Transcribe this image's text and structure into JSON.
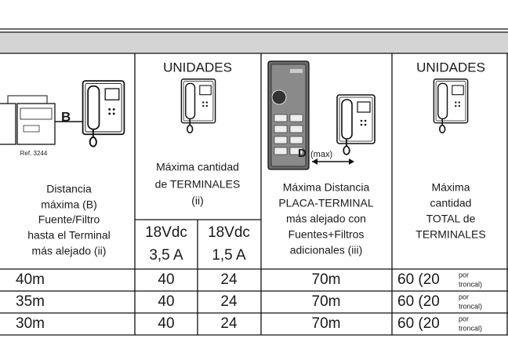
{
  "header": {
    "col1": {
      "diagram_labels": [
        "B",
        "Ref. 3244"
      ],
      "text": [
        "Distancia",
        "máxima (B)",
        "Fuente/Filtro",
        "hasta el Terminal",
        "más alejado (ii)"
      ]
    },
    "col2": {
      "title": "UNIDADES",
      "text": [
        "Máxima cantidad",
        "de TERMINALES",
        "(ii)"
      ],
      "sub": [
        [
          "18Vdc",
          "3,5 A"
        ],
        [
          "18Vdc",
          "1,5 A"
        ]
      ]
    },
    "col3": {
      "diagram_labels": [
        "D",
        "(max)"
      ],
      "text": [
        "Máxima Distancia",
        "PLACA-TERMINAL",
        "más alejado con",
        "Fuentes+Filtros",
        "adicionales (iii)"
      ]
    },
    "col4": {
      "title": "UNIDADES",
      "text": [
        "Máxima",
        "cantidad",
        "TOTAL de",
        "TERMINALES"
      ]
    }
  },
  "rows": [
    [
      "40m",
      "40",
      "24",
      "70m",
      "60 (20",
      "por",
      "troncal)"
    ],
    [
      "35m",
      "40",
      "24",
      "70m",
      "60 (20",
      "por",
      "troncal)"
    ],
    [
      "30m",
      "40",
      "24",
      "70m",
      "60 (20",
      "por",
      "troncal)"
    ]
  ]
}
